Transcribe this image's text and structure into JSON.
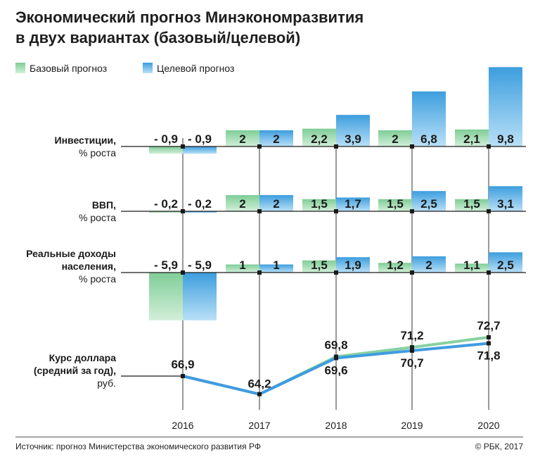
{
  "title_line1": "Экономический прогноз Минэкономразвития",
  "title_line2": "в двух вариантах (базовый/целевой)",
  "footer": {
    "source": "Источник: прогноз Министерства экономического развития РФ",
    "copyright": "© РБК, 2017"
  },
  "colors": {
    "base": "#8fd3a4",
    "target": "#4aa6e0",
    "base_line": "#86d1a0",
    "target_line": "#3f9be0",
    "axis": "#1a1a1a"
  },
  "chart_data": {
    "type": "bar",
    "categories": [
      "2016",
      "2017",
      "2018",
      "2019",
      "2020"
    ],
    "legend": [
      {
        "key": "base",
        "label": "Базовый прогноз"
      },
      {
        "key": "target",
        "label": "Целевой прогноз"
      }
    ],
    "panels": [
      {
        "id": "investments",
        "label_lines": [
          "Инвестиции,",
          "% роста"
        ],
        "base": [
          -0.9,
          2,
          2.2,
          2,
          2.1
        ],
        "target": [
          -0.9,
          2,
          3.9,
          6.8,
          9.8
        ],
        "base_labels": [
          "- 0,9",
          "2",
          "2,2",
          "2",
          "2,1"
        ],
        "target_labels": [
          "- 0,9",
          "2",
          "3,9",
          "6,8",
          "9,8"
        ]
      },
      {
        "id": "gdp",
        "label_lines": [
          "ВВП,",
          "% роста"
        ],
        "base": [
          -0.2,
          2,
          1.5,
          1.5,
          1.5
        ],
        "target": [
          -0.2,
          2,
          1.7,
          2.5,
          3.1
        ],
        "base_labels": [
          "- 0,2",
          "2",
          "1,5",
          "1,5",
          "1,5"
        ],
        "target_labels": [
          "- 0,2",
          "2",
          "1,7",
          "2,5",
          "3,1"
        ]
      },
      {
        "id": "income",
        "label_lines": [
          "Реальные доходы",
          "населения,",
          "% роста"
        ],
        "base": [
          -5.9,
          1,
          1.5,
          1.2,
          1.1
        ],
        "target": [
          -5.9,
          1,
          1.9,
          2,
          2.5
        ],
        "base_labels": [
          "- 5,9",
          "1",
          "1,5",
          "1,2",
          "1,1"
        ],
        "target_labels": [
          "- 5,9",
          "1",
          "1,9",
          "2",
          "2,5"
        ]
      }
    ],
    "exchange_rate": {
      "type": "line",
      "label_lines": [
        "Курс доллара",
        "(средний за год),",
        "руб."
      ],
      "base": [
        66.9,
        64.2,
        69.8,
        71.2,
        72.7
      ],
      "target": [
        66.9,
        64.2,
        69.6,
        70.7,
        71.8
      ],
      "labels_base": [
        "66,9",
        "64,2",
        "69,8",
        "71,2",
        "72,7"
      ],
      "labels_target": [
        "",
        "",
        "69,6",
        "70,7",
        "71,8"
      ]
    }
  }
}
